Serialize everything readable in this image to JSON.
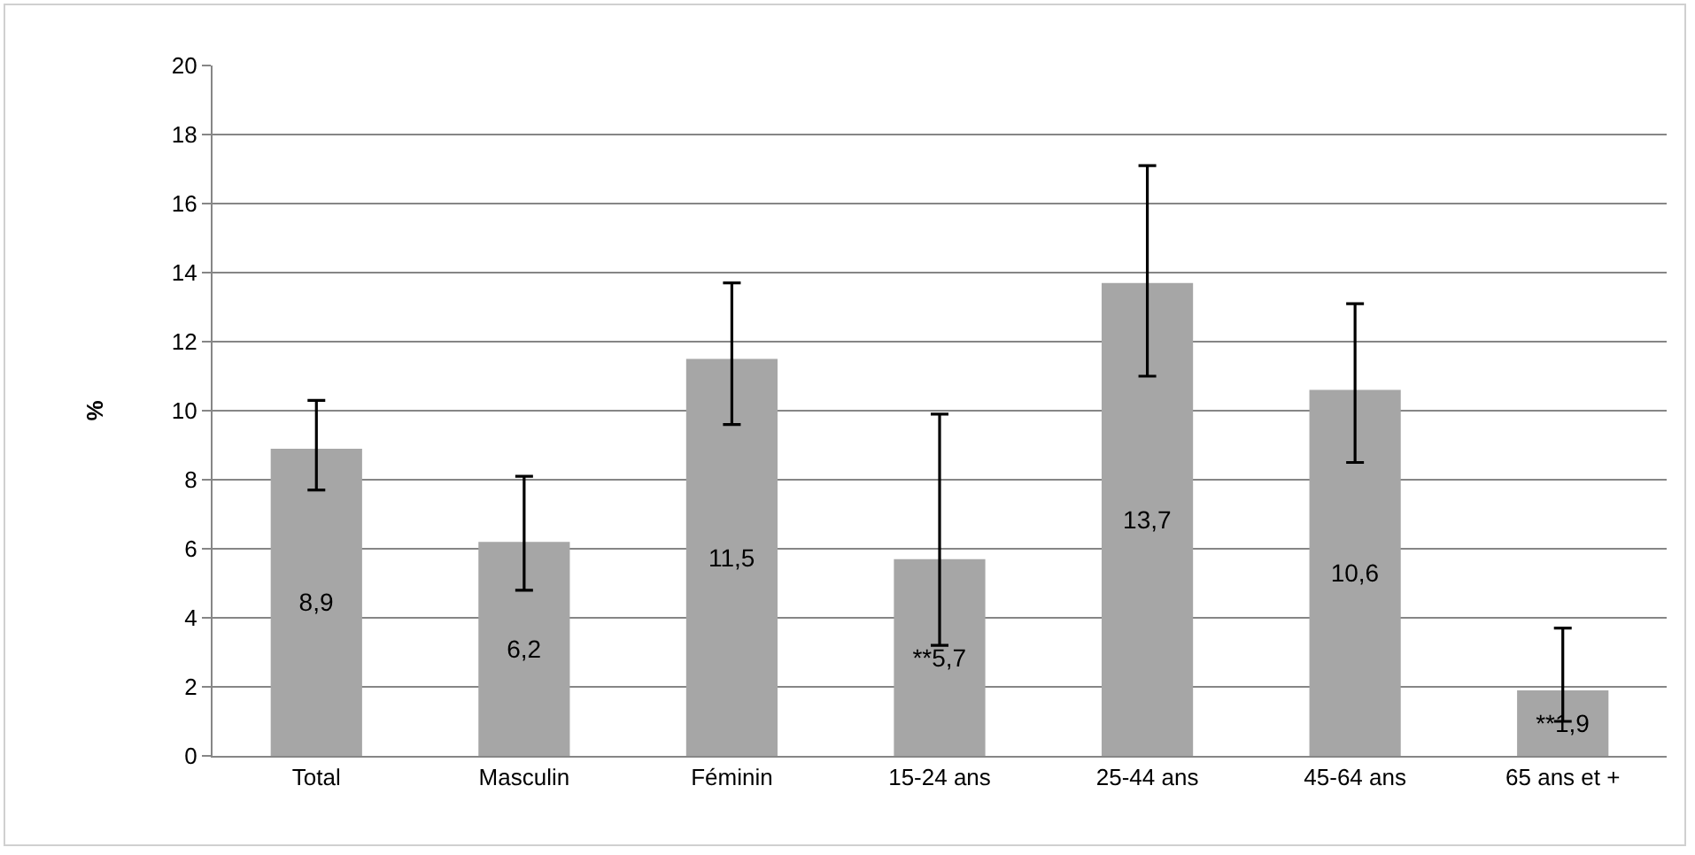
{
  "chart_data": {
    "type": "bar",
    "ylabel": "%",
    "categories": [
      "Total",
      "Masculin",
      "Féminin",
      "15-24 ans",
      "25-44 ans",
      "45-64 ans",
      "65 ans et +"
    ],
    "values": [
      8.9,
      6.2,
      11.5,
      5.7,
      13.7,
      10.6,
      1.9
    ],
    "value_labels": [
      "8,9",
      "6,2",
      "11,5",
      "**5,7",
      "13,7",
      "10,6",
      "**1,9"
    ],
    "errors": [
      [
        7.7,
        10.3
      ],
      [
        4.8,
        8.1
      ],
      [
        9.6,
        13.7
      ],
      [
        3.2,
        9.9
      ],
      [
        11.0,
        17.1
      ],
      [
        8.5,
        13.1
      ],
      [
        1.0,
        3.7
      ]
    ],
    "color": "#a6a6a6",
    "ylim": [
      0,
      20
    ],
    "yticks": [
      0,
      2,
      4,
      6,
      8,
      10,
      12,
      14,
      16,
      18,
      20
    ],
    "grid": "y"
  }
}
